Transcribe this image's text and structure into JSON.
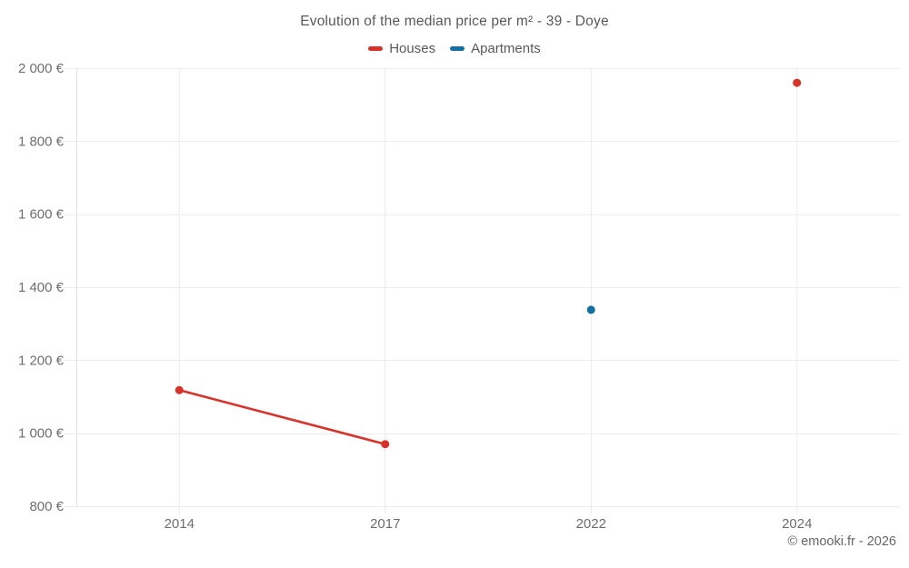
{
  "page": {
    "footer": "© emooki.fr - 2026"
  },
  "chart_data": {
    "type": "line",
    "title": "Evolution of the median price per m² - 39 - Doye",
    "categories": [
      "2014",
      "2017",
      "2022",
      "2024"
    ],
    "series": [
      {
        "name": "Houses",
        "color": "#d7332b",
        "values": [
          1118,
          970,
          null,
          1960
        ]
      },
      {
        "name": "Apartments",
        "color": "#1370a2",
        "values": [
          null,
          null,
          1338,
          null
        ]
      }
    ],
    "xlabel": "",
    "ylabel": "",
    "ylim": [
      800,
      2000
    ],
    "ytick_step": 200,
    "ytick_labels": [
      "800 €",
      "1 000 €",
      "1 200 €",
      "1 400 €",
      "1 600 €",
      "1 800 €",
      "2 000 €"
    ],
    "grid": true,
    "legend_position": "top",
    "grid_color": "#ececec",
    "axis_color": "#e0e0e0",
    "tick_label_color": "#6e6e6e",
    "line_breaks_on_missing": true
  }
}
